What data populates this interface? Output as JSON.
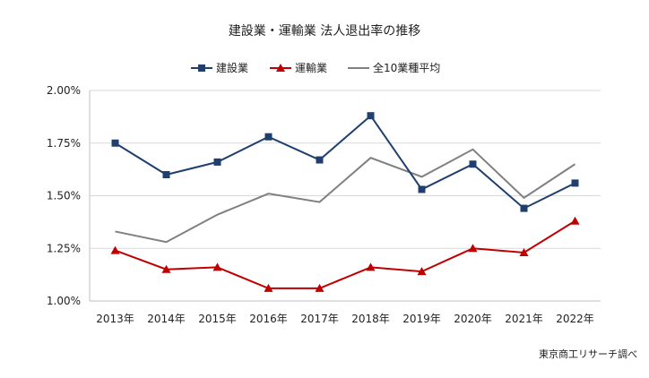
{
  "chart_data": {
    "type": "line",
    "title": "建設業・運輸業 法人退出率の推移",
    "categories": [
      "2013年",
      "2014年",
      "2015年",
      "2016年",
      "2017年",
      "2018年",
      "2019年",
      "2020年",
      "2021年",
      "2022年"
    ],
    "y_ticks": [
      "1.00%",
      "1.25%",
      "1.50%",
      "1.75%",
      "2.00%"
    ],
    "ylim": [
      1.0,
      2.0
    ],
    "grid": true,
    "legend_position": "top",
    "series": [
      {
        "name": "建設業",
        "color": "#1f3f6e",
        "marker": "square",
        "values": [
          1.75,
          1.6,
          1.66,
          1.78,
          1.67,
          1.88,
          1.53,
          1.65,
          1.44,
          1.56
        ]
      },
      {
        "name": "運輸業",
        "color": "#c00000",
        "marker": "triangle",
        "values": [
          1.24,
          1.15,
          1.16,
          1.06,
          1.06,
          1.16,
          1.14,
          1.25,
          1.23,
          1.38
        ]
      },
      {
        "name": "全10業種平均",
        "color": "#808080",
        "marker": "none",
        "values": [
          1.33,
          1.28,
          1.41,
          1.51,
          1.47,
          1.68,
          1.59,
          1.72,
          1.49,
          1.65
        ]
      }
    ],
    "source": "東京商工リサーチ調べ"
  }
}
